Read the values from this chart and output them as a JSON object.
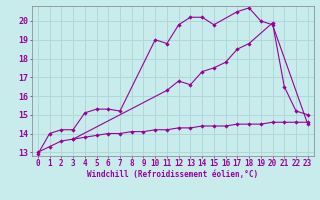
{
  "xlabel": "Windchill (Refroidissement éolien,°C)",
  "bg_color": "#c8ecec",
  "grid_color": "#b0d8d8",
  "line_color": "#990099",
  "xlim": [
    -0.5,
    23.5
  ],
  "ylim": [
    12.8,
    20.8
  ],
  "xticks": [
    0,
    1,
    2,
    3,
    4,
    5,
    6,
    7,
    8,
    9,
    10,
    11,
    12,
    13,
    14,
    15,
    16,
    17,
    18,
    19,
    20,
    21,
    22,
    23
  ],
  "yticks": [
    13,
    14,
    15,
    16,
    17,
    18,
    19,
    20
  ],
  "line1_x": [
    0,
    1,
    2,
    3,
    4,
    5,
    6,
    7,
    10,
    11,
    12,
    13,
    14,
    15,
    17,
    18,
    19,
    20,
    23
  ],
  "line1_y": [
    12.9,
    14.0,
    14.2,
    14.2,
    15.1,
    15.3,
    15.3,
    15.2,
    19.0,
    18.8,
    19.8,
    20.2,
    20.2,
    19.8,
    20.5,
    20.7,
    20.0,
    19.8,
    14.5
  ],
  "line2_x": [
    3,
    11,
    12,
    13,
    14,
    15,
    16,
    17,
    18,
    20,
    21,
    22,
    23
  ],
  "line2_y": [
    13.7,
    16.3,
    16.8,
    16.6,
    17.3,
    17.5,
    17.8,
    18.5,
    18.8,
    19.9,
    16.5,
    15.2,
    15.0
  ],
  "line3_x": [
    0,
    1,
    2,
    3,
    4,
    5,
    6,
    7,
    8,
    9,
    10,
    11,
    12,
    13,
    14,
    15,
    16,
    17,
    18,
    19,
    20,
    21,
    22,
    23
  ],
  "line3_y": [
    13.0,
    13.3,
    13.6,
    13.7,
    13.8,
    13.9,
    14.0,
    14.0,
    14.1,
    14.1,
    14.2,
    14.2,
    14.3,
    14.3,
    14.4,
    14.4,
    14.4,
    14.5,
    14.5,
    14.5,
    14.6,
    14.6,
    14.6,
    14.6
  ],
  "tick_fontsize": 5.5,
  "xlabel_fontsize": 5.5
}
